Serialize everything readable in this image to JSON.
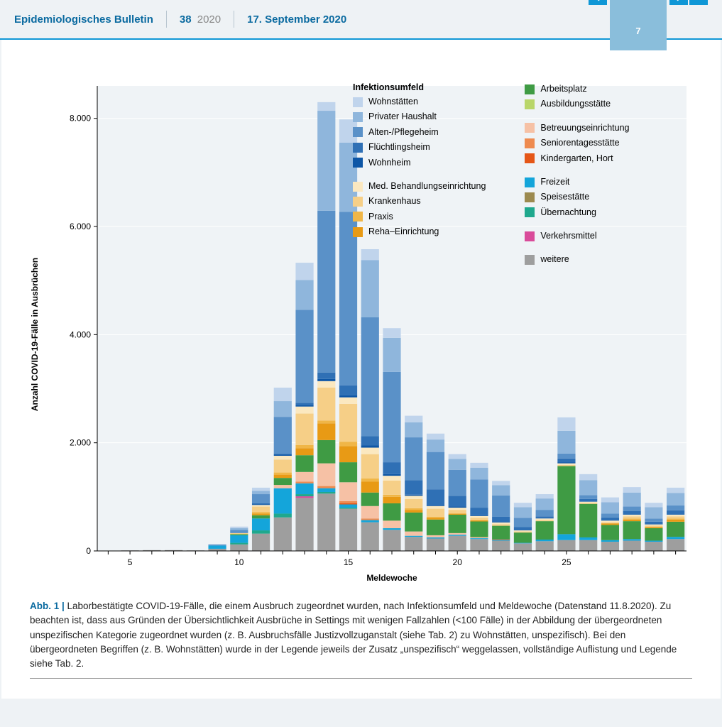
{
  "header": {
    "title": "Epidemiologisches Bulletin",
    "issue_number": "38",
    "issue_year": "2020",
    "date": "17. September 2020",
    "page_number": "7"
  },
  "chart": {
    "type": "stacked-bar",
    "ylabel": "Anzahl COVID-19-Fälle in Ausbrüchen",
    "xlabel": "Meldewoche",
    "ylim": [
      0,
      8600
    ],
    "yticks": [
      0,
      2000,
      4000,
      6000,
      8000
    ],
    "ytick_labels": [
      "0",
      "2.000",
      "4.000",
      "6.000",
      "8.000"
    ],
    "xtick_values": [
      5,
      10,
      15,
      20,
      25
    ],
    "xtick_labels": [
      "5",
      "10",
      "15",
      "20",
      "25"
    ],
    "x_min": 4,
    "x_max": 30,
    "bar_width": 0.82,
    "background_color": "#eff3f6",
    "grid_color": "#ffffff",
    "legend_title": "Infektionsumfeld",
    "series_order": [
      "weitere",
      "verkehr",
      "uebernacht",
      "speise",
      "freizeit",
      "kinder",
      "senior",
      "betreu",
      "ausbild",
      "arbeit",
      "reha",
      "praxis",
      "krankenhaus",
      "med",
      "wohnheim",
      "fluecht",
      "alten",
      "privhaus",
      "wohnstaetten"
    ],
    "series": {
      "wohnstaetten": {
        "label": "Wohnstätten",
        "color": "#c0d4ec"
      },
      "privhaus": {
        "label": "Privater Haushalt",
        "color": "#8fb6dc"
      },
      "alten": {
        "label": "Alten-/Pflegeheim",
        "color": "#5a91c8"
      },
      "fluecht": {
        "label": "Flüchtlingsheim",
        "color": "#2f70b5"
      },
      "wohnheim": {
        "label": "Wohnheim",
        "color": "#0d56a6"
      },
      "med": {
        "label": "Med. Behandlungseinrichtung",
        "color": "#fbe8c0"
      },
      "krankenhaus": {
        "label": "Krankenhaus",
        "color": "#f6cf87"
      },
      "praxis": {
        "label": "Praxis",
        "color": "#f0b647"
      },
      "reha": {
        "label": "Reha–Einrichtung",
        "color": "#e89a15"
      },
      "arbeit": {
        "label": "Arbeitsplatz",
        "color": "#3f9b44"
      },
      "ausbild": {
        "label": "Ausbildungsstätte",
        "color": "#b9d66a"
      },
      "betreu": {
        "label": "Betreuungseinrichtung",
        "color": "#f6c1a5"
      },
      "senior": {
        "label": "Seniorentagesstätte",
        "color": "#ee8a4f"
      },
      "kinder": {
        "label": "Kindergarten, Hort",
        "color": "#e55617"
      },
      "freizeit": {
        "label": "Freizeit",
        "color": "#14a5da"
      },
      "speise": {
        "label": "Speisestätte",
        "color": "#9c8a4f"
      },
      "uebernacht": {
        "label": "Übernachtung",
        "color": "#1fa88d"
      },
      "verkehr": {
        "label": "Verkehrsmittel",
        "color": "#d94b9a"
      },
      "weitere": {
        "label": "weitere",
        "color": "#9e9e9e"
      }
    },
    "legend_left_keys": [
      "wohnstaetten",
      "privhaus",
      "alten",
      "fluecht",
      "wohnheim",
      "",
      "med",
      "krankenhaus",
      "praxis",
      "reha"
    ],
    "legend_right_keys": [
      "arbeit",
      "ausbild",
      "",
      "betreu",
      "senior",
      "kinder",
      "",
      "freizeit",
      "speise",
      "uebernacht",
      "",
      "verkehr",
      "",
      "weitere"
    ],
    "data": {
      "5": {
        "weitere": 10
      },
      "6": {
        "weitere": 15
      },
      "7": {
        "weitere": 15
      },
      "8": {
        "weitere": 10
      },
      "9": {
        "weitere": 40,
        "freizeit": 60,
        "alten": 20
      },
      "10": {
        "weitere": 120,
        "uebernacht": 30,
        "freizeit": 140,
        "arbeit": 20,
        "krankenhaus": 20,
        "alten": 60,
        "privhaus": 30,
        "wohnstaetten": 30
      },
      "11": {
        "weitere": 320,
        "uebernacht": 60,
        "freizeit": 220,
        "arbeit": 60,
        "reha": 30,
        "praxis": 30,
        "krankenhaus": 100,
        "med": 30,
        "wohnheim": 15,
        "fluecht": 15,
        "alten": 170,
        "privhaus": 60,
        "wohnstaetten": 60
      },
      "12": {
        "weitere": 620,
        "uebernacht": 70,
        "freizeit": 470,
        "betreu": 60,
        "arbeit": 130,
        "reha": 60,
        "praxis": 40,
        "krankenhaus": 240,
        "med": 70,
        "wohnheim": 20,
        "fluecht": 20,
        "alten": 680,
        "privhaus": 290,
        "wohnstaetten": 250
      },
      "13": {
        "weitere": 980,
        "verkehr": 30,
        "uebernacht": 40,
        "freizeit": 200,
        "senior": 30,
        "betreu": 180,
        "arbeit": 310,
        "reha": 130,
        "praxis": 60,
        "krankenhaus": 580,
        "med": 130,
        "wohnheim": 30,
        "fluecht": 40,
        "alten": 1720,
        "privhaus": 550,
        "wohnstaetten": 320
      },
      "14": {
        "weitere": 1060,
        "uebernacht": 30,
        "freizeit": 70,
        "senior": 40,
        "betreu": 420,
        "arbeit": 430,
        "reha": 310,
        "praxis": 50,
        "krankenhaus": 610,
        "med": 120,
        "wohnheim": 40,
        "fluecht": 120,
        "alten": 2990,
        "privhaus": 1850,
        "wohnstaetten": 160
      },
      "15": {
        "weitere": 780,
        "uebernacht": 20,
        "freizeit": 60,
        "kinder": 20,
        "senior": 40,
        "betreu": 350,
        "arbeit": 370,
        "reha": 300,
        "praxis": 80,
        "krankenhaus": 700,
        "med": 120,
        "wohnheim": 40,
        "fluecht": 180,
        "alten": 3210,
        "privhaus": 1280,
        "wohnstaetten": 430
      },
      "16": {
        "weitere": 530,
        "freizeit": 40,
        "senior": 30,
        "betreu": 230,
        "arbeit": 250,
        "reha": 200,
        "praxis": 60,
        "krankenhaus": 450,
        "med": 120,
        "wohnheim": 40,
        "fluecht": 170,
        "alten": 2200,
        "privhaus": 1060,
        "wohnstaetten": 200
      },
      "17": {
        "weitere": 390,
        "freizeit": 30,
        "betreu": 140,
        "arbeit": 320,
        "reha": 120,
        "praxis": 40,
        "krankenhaus": 260,
        "med": 90,
        "wohnheim": 30,
        "fluecht": 220,
        "alten": 1670,
        "privhaus": 630,
        "wohnstaetten": 180
      },
      "18": {
        "weitere": 260,
        "freizeit": 20,
        "betreu": 80,
        "arbeit": 350,
        "reha": 50,
        "praxis": 30,
        "krankenhaus": 170,
        "med": 60,
        "wohnheim": 20,
        "fluecht": 270,
        "alten": 790,
        "privhaus": 280,
        "wohnstaetten": 120
      },
      "19": {
        "weitere": 230,
        "freizeit": 20,
        "betreu": 40,
        "arbeit": 290,
        "reha": 30,
        "praxis": 20,
        "krankenhaus": 150,
        "med": 50,
        "wohnheim": 20,
        "fluecht": 290,
        "alten": 690,
        "privhaus": 230,
        "wohnstaetten": 110
      },
      "20": {
        "weitere": 280,
        "freizeit": 20,
        "betreu": 30,
        "arbeit": 340,
        "reha": 20,
        "krankenhaus": 70,
        "med": 40,
        "wohnheim": 20,
        "fluecht": 200,
        "alten": 480,
        "privhaus": 200,
        "wohnstaetten": 90
      },
      "21": {
        "weitere": 220,
        "freizeit": 15,
        "betreu": 20,
        "arbeit": 290,
        "reha": 20,
        "krankenhaus": 50,
        "med": 30,
        "wohnheim": 15,
        "fluecht": 140,
        "alten": 520,
        "privhaus": 220,
        "wohnstaetten": 90
      },
      "22": {
        "weitere": 190,
        "freizeit": 15,
        "kinder": 10,
        "arbeit": 250,
        "krankenhaus": 30,
        "med": 30,
        "wohnheim": 10,
        "fluecht": 100,
        "alten": 390,
        "privhaus": 190,
        "wohnstaetten": 80
      },
      "23": {
        "weitere": 140,
        "freizeit": 10,
        "arbeit": 190,
        "krankenhaus": 20,
        "med": 20,
        "fluecht": 60,
        "alten": 170,
        "privhaus": 200,
        "wohnstaetten": 80
      },
      "24": {
        "weitere": 180,
        "freizeit": 30,
        "arbeit": 340,
        "krankenhaus": 20,
        "med": 30,
        "fluecht": 40,
        "alten": 120,
        "privhaus": 210,
        "wohnstaetten": 80
      },
      "25": {
        "weitere": 200,
        "freizeit": 110,
        "arbeit": 1260,
        "krankenhaus": 20,
        "med": 30,
        "wohnheim": 20,
        "fluecht": 70,
        "alten": 90,
        "privhaus": 420,
        "wohnstaetten": 250
      },
      "26": {
        "weitere": 200,
        "freizeit": 50,
        "arbeit": 620,
        "krankenhaus": 20,
        "med": 20,
        "fluecht": 50,
        "alten": 70,
        "privhaus": 280,
        "wohnstaetten": 110
      },
      "27": {
        "weitere": 170,
        "freizeit": 30,
        "arbeit": 280,
        "reha": 30,
        "krankenhaus": 20,
        "med": 30,
        "fluecht": 60,
        "alten": 70,
        "privhaus": 210,
        "wohnstaetten": 90
      },
      "28": {
        "weitere": 190,
        "freizeit": 30,
        "arbeit": 330,
        "reha": 30,
        "praxis": 20,
        "krankenhaus": 40,
        "med": 30,
        "fluecht": 70,
        "alten": 80,
        "privhaus": 260,
        "wohnstaetten": 100
      },
      "29": {
        "weitere": 170,
        "freizeit": 20,
        "arbeit": 230,
        "reha": 20,
        "krankenhaus": 30,
        "med": 20,
        "fluecht": 50,
        "alten": 60,
        "privhaus": 210,
        "wohnstaetten": 80
      },
      "30": {
        "weitere": 220,
        "freizeit": 40,
        "arbeit": 280,
        "reha": 40,
        "praxis": 20,
        "krankenhaus": 40,
        "med": 30,
        "fluecht": 80,
        "alten": 90,
        "privhaus": 230,
        "wohnstaetten": 100
      }
    }
  },
  "caption": {
    "fig_label": "Abb. 1 | ",
    "text": "Laborbestätigte COVID-19-Fälle, die einem Ausbruch zugeordnet wurden, nach Infektionsumfeld und Meldewoche (Datenstand 11.8.2020). Zu beachten ist, dass aus Gründen der Übersichtlichkeit Ausbrüche in Settings mit wenigen Fallzahlen (<100 Fälle) in der Abbildung der übergeordneten unspezifischen Kategorie zugeordnet wurden (z. B. Ausbruchsfälle Justizvollzuganstalt (siehe Tab. 2) zu Wohnstätten, unspezifisch). Bei den übergeordneten Begriffen (z. B. Wohnstätten) wurde in der Legende jeweils der Zusatz „unspezifisch“ weggelassen, vollständige Auflistung und Legende siehe Tab. 2."
  }
}
